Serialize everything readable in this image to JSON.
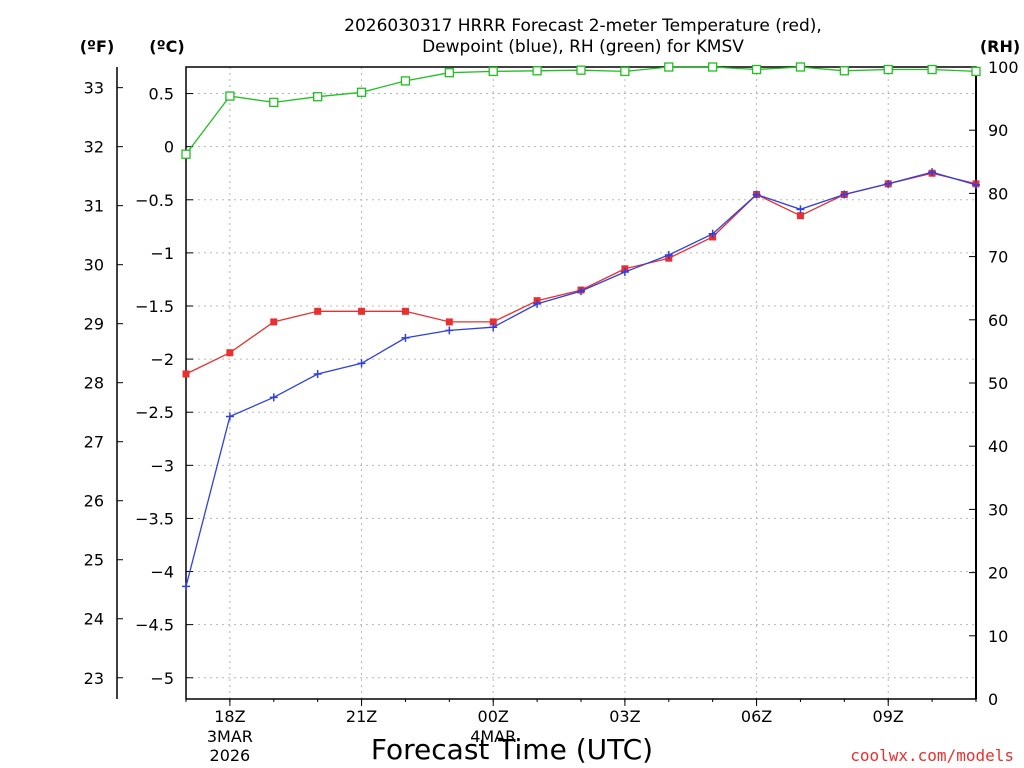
{
  "chart_data": {
    "type": "line",
    "title_line1": "2026030317 HRRR Forecast 2-meter Temperature (red),",
    "title_line2": "Dewpoint (blue), RH (green) for KMSV",
    "xlabel": "Forecast Time (UTC)",
    "credit": "coolwx.com/models",
    "units": {
      "f": "(ºF)",
      "c": "(ºC)",
      "rh": "(RH)"
    },
    "x_hours": [
      17,
      18,
      19,
      20,
      21,
      22,
      23,
      24,
      25,
      26,
      27,
      28,
      29,
      30,
      31,
      32,
      33,
      34,
      35
    ],
    "x_range": [
      17,
      35
    ],
    "y_celsius_range": [
      -5.2,
      0.75
    ],
    "y_rh_range": [
      0,
      100
    ],
    "x_ticks": [
      {
        "hour": 18,
        "label": "18Z",
        "date": "3MAR",
        "year": "2026"
      },
      {
        "hour": 21,
        "label": "21Z",
        "date": "",
        "year": ""
      },
      {
        "hour": 24,
        "label": "00Z",
        "date": "4MAR",
        "year": ""
      },
      {
        "hour": 27,
        "label": "03Z",
        "date": "",
        "year": ""
      },
      {
        "hour": 30,
        "label": "06Z",
        "date": "",
        "year": ""
      },
      {
        "hour": 33,
        "label": "09Z",
        "date": "",
        "year": ""
      }
    ],
    "y_celsius_ticks": [
      {
        "value": 0.5,
        "label": "0.5"
      },
      {
        "value": 0,
        "label": "0"
      },
      {
        "value": -0.5,
        "label": "−0.5"
      },
      {
        "value": -1,
        "label": "−1"
      },
      {
        "value": -1.5,
        "label": "−1.5"
      },
      {
        "value": -2,
        "label": "−2"
      },
      {
        "value": -2.5,
        "label": "−2.5"
      },
      {
        "value": -3,
        "label": "−3"
      },
      {
        "value": -3.5,
        "label": "−3.5"
      },
      {
        "value": -4,
        "label": "−4"
      },
      {
        "value": -4.5,
        "label": "−4.5"
      },
      {
        "value": -5,
        "label": "−5"
      }
    ],
    "y_fahrenheit_ticks": [
      {
        "value": 33,
        "label": "33"
      },
      {
        "value": 32,
        "label": "32"
      },
      {
        "value": 31,
        "label": "31"
      },
      {
        "value": 30,
        "label": "30"
      },
      {
        "value": 29,
        "label": "29"
      },
      {
        "value": 28,
        "label": "28"
      },
      {
        "value": 27,
        "label": "27"
      },
      {
        "value": 26,
        "label": "26"
      },
      {
        "value": 25,
        "label": "25"
      },
      {
        "value": 24,
        "label": "24"
      },
      {
        "value": 23,
        "label": "23"
      }
    ],
    "y_rh_ticks": [
      {
        "value": 100,
        "label": "100"
      },
      {
        "value": 90,
        "label": "90"
      },
      {
        "value": 80,
        "label": "80"
      },
      {
        "value": 70,
        "label": "70"
      },
      {
        "value": 60,
        "label": "60"
      },
      {
        "value": 50,
        "label": "50"
      },
      {
        "value": 40,
        "label": "40"
      },
      {
        "value": 30,
        "label": "30"
      },
      {
        "value": 20,
        "label": "20"
      },
      {
        "value": 10,
        "label": "10"
      },
      {
        "value": 0,
        "label": "0"
      }
    ],
    "series": [
      {
        "name": "Temperature",
        "axis": "celsius",
        "color": "#e83030",
        "marker": "filled-square",
        "values": [
          -2.14,
          -1.94,
          -1.65,
          -1.55,
          -1.55,
          -1.55,
          -1.65,
          -1.65,
          -1.45,
          -1.35,
          -1.15,
          -1.05,
          -0.85,
          -0.45,
          -0.65,
          -0.45,
          -0.35,
          -0.25,
          -0.35
        ]
      },
      {
        "name": "Dewpoint",
        "axis": "celsius",
        "color": "#3040e0",
        "marker": "plus",
        "values": [
          -4.14,
          -2.54,
          -2.36,
          -2.14,
          -2.04,
          -1.8,
          -1.73,
          -1.7,
          -1.48,
          -1.36,
          -1.18,
          -1.02,
          -0.82,
          -0.45,
          -0.59,
          -0.45,
          -0.35,
          -0.24,
          -0.36
        ]
      },
      {
        "name": "RH",
        "axis": "rh",
        "color": "#20c020",
        "marker": "open-square",
        "values": [
          86.2,
          95.4,
          94.4,
          95.3,
          96.0,
          97.8,
          99.1,
          99.3,
          99.4,
          99.5,
          99.3,
          100.0,
          100.0,
          99.6,
          100.0,
          99.4,
          99.6,
          99.6,
          99.3
        ]
      }
    ]
  }
}
